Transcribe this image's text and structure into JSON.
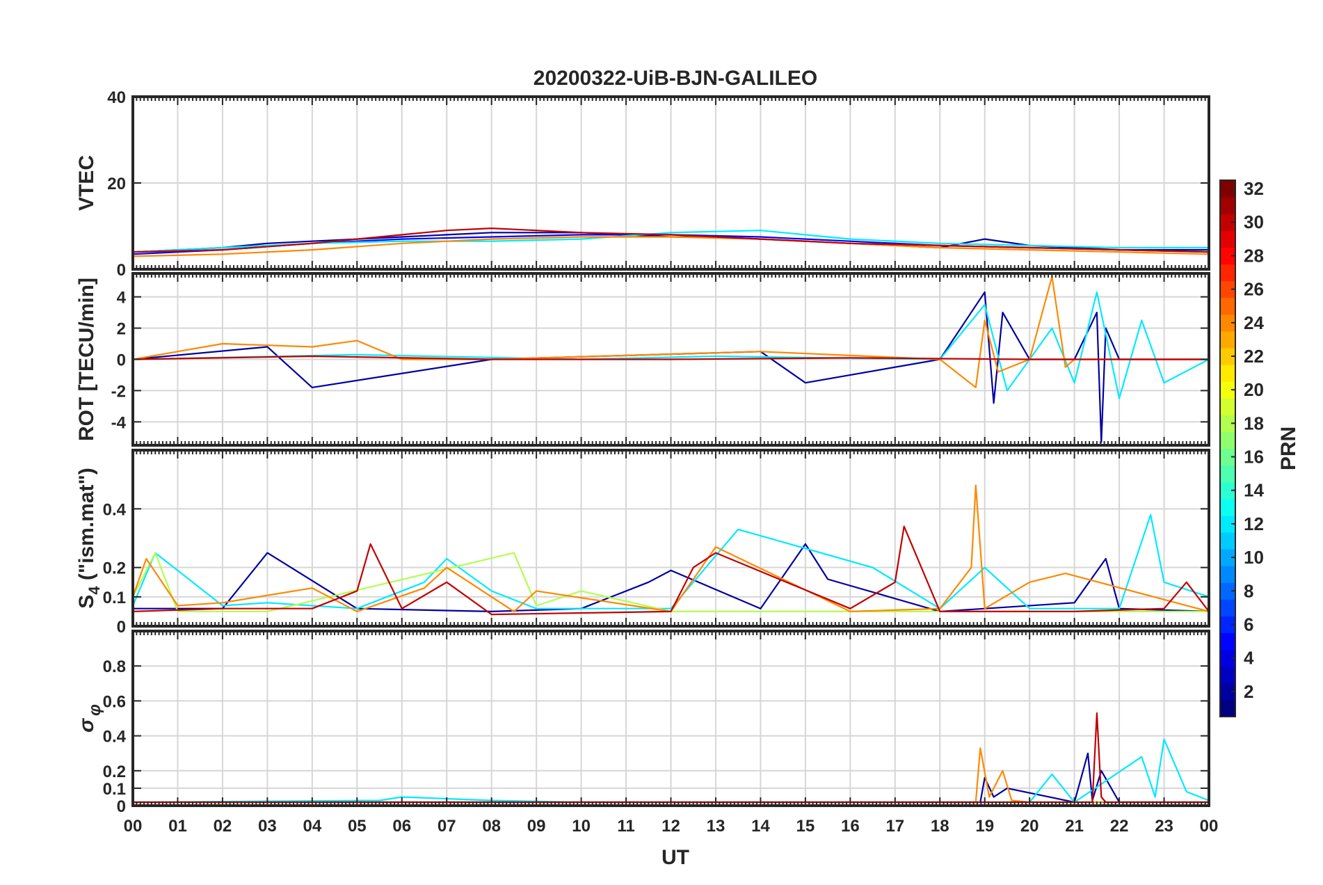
{
  "chart_data": {
    "type": "line",
    "title": "20200322-UiB-BJN-GALILEO",
    "xlabel": "UT",
    "x_ticks": [
      "00",
      "01",
      "02",
      "03",
      "04",
      "05",
      "06",
      "07",
      "08",
      "09",
      "10",
      "11",
      "12",
      "13",
      "14",
      "15",
      "16",
      "17",
      "18",
      "19",
      "20",
      "21",
      "22",
      "23",
      "00"
    ],
    "xlim": [
      0,
      24
    ],
    "grid": true,
    "panels": [
      {
        "id": "vtec",
        "ylabel": "VTEC",
        "ylim": [
          0,
          40
        ],
        "y_ticks": [
          0,
          20,
          40
        ],
        "y_tick_labels": [
          "0",
          "20",
          "40"
        ],
        "series": [
          {
            "prn": 2,
            "x": [
              0,
              1,
              2,
              3,
              4,
              5,
              6,
              7,
              8,
              9,
              10,
              11,
              12,
              13,
              14,
              15,
              16,
              17,
              18,
              19,
              20,
              21,
              22,
              23,
              24
            ],
            "y": [
              4,
              4.5,
              5,
              6,
              6.5,
              7,
              7.5,
              8,
              8.5,
              8.5,
              8.5,
              8,
              7.5,
              7.5,
              7,
              6.5,
              6,
              5.5,
              5,
              7,
              5.5,
              5,
              4.5,
              4.5,
              4.5
            ]
          },
          {
            "prn": 5,
            "x": [
              0,
              2,
              4,
              6,
              8,
              10,
              12,
              14,
              16,
              18,
              20,
              22,
              24
            ],
            "y": [
              3.5,
              4.5,
              6,
              7,
              7.5,
              8,
              8,
              7.5,
              6.5,
              5.5,
              5,
              4.5,
              4
            ]
          },
          {
            "prn": 12,
            "x": [
              0,
              2,
              4,
              6,
              8,
              10,
              12,
              14,
              16,
              18,
              20,
              22,
              24
            ],
            "y": [
              4,
              5,
              6,
              6.5,
              6.5,
              7,
              8.5,
              9,
              7,
              6,
              5.5,
              5,
              5
            ]
          },
          {
            "prn": 24,
            "x": [
              0,
              2,
              4,
              6,
              8,
              10,
              12,
              14,
              16,
              18,
              20,
              22,
              24
            ],
            "y": [
              3,
              3.5,
              4.5,
              6,
              7,
              7.5,
              7.5,
              7,
              6,
              5,
              4.5,
              4,
              3.5
            ]
          },
          {
            "prn": 30,
            "x": [
              0,
              2,
              4,
              6,
              7,
              8,
              10,
              12,
              14,
              16,
              18,
              20,
              22,
              24
            ],
            "y": [
              4,
              4.5,
              6,
              8,
              9,
              9.5,
              8.5,
              8,
              7,
              6,
              5.5,
              5,
              4.5,
              4
            ]
          }
        ]
      },
      {
        "id": "rot",
        "ylabel": "ROT [TECU/min]",
        "ylim": [
          -5.5,
          5.5
        ],
        "y_ticks": [
          -4,
          -2,
          0,
          2,
          4
        ],
        "y_tick_labels": [
          "-4",
          "-2",
          "0",
          "2",
          "4"
        ],
        "series": [
          {
            "prn": 2,
            "x": [
              0,
              3,
              4,
              8,
              14,
              15,
              18,
              19,
              19.2,
              19.4,
              20,
              21,
              21.5,
              21.6,
              21.7,
              22,
              23,
              24
            ],
            "y": [
              0,
              0.8,
              -1.8,
              0,
              0.5,
              -1.5,
              0,
              4.3,
              -2.8,
              3,
              0,
              0,
              3,
              -5.3,
              2,
              0,
              0,
              0
            ]
          },
          {
            "prn": 12,
            "x": [
              0,
              5,
              10,
              13,
              18,
              19,
              19.5,
              20,
              20.5,
              21,
              21.5,
              22,
              22.5,
              23,
              24
            ],
            "y": [
              0,
              0.3,
              0,
              0.2,
              0,
              3.5,
              -2,
              0,
              2,
              -1.5,
              4.3,
              -2.5,
              2.5,
              -1.5,
              0
            ]
          },
          {
            "prn": 24,
            "x": [
              0,
              2,
              4,
              5,
              6,
              8,
              14,
              18,
              18.8,
              19,
              19.3,
              20,
              20.5,
              20.8,
              21,
              24
            ],
            "y": [
              0,
              1,
              0.8,
              1.2,
              0,
              0,
              0.5,
              0,
              -1.8,
              2.5,
              -0.8,
              0,
              5.3,
              -0.5,
              0,
              0
            ]
          },
          {
            "prn": 30,
            "x": [
              0,
              4,
              8,
              12,
              16,
              20,
              24
            ],
            "y": [
              0,
              0.2,
              0,
              0,
              0.1,
              0,
              0
            ]
          }
        ]
      },
      {
        "id": "s4",
        "ylabel_main": "S",
        "ylabel_sub": "4",
        "ylabel_suffix": " (\"ism.mat\")",
        "ylim": [
          0,
          0.6
        ],
        "y_ticks": [
          0,
          0.1,
          0.2,
          0.4
        ],
        "y_tick_labels": [
          "0",
          "0.1",
          "0.2",
          "0.4"
        ],
        "series": [
          {
            "prn": 2,
            "x": [
              0,
              2,
              3,
              5,
              8,
              10,
              11.5,
              12,
              14,
              15,
              15.5,
              18,
              21,
              21.7,
              22,
              24
            ],
            "y": [
              0.06,
              0.06,
              0.25,
              0.06,
              0.05,
              0.06,
              0.15,
              0.19,
              0.06,
              0.28,
              0.16,
              0.05,
              0.08,
              0.23,
              0.06,
              0.05
            ]
          },
          {
            "prn": 12,
            "x": [
              0,
              0.5,
              2,
              3,
              5,
              6.5,
              7,
              8,
              9,
              12,
              13.5,
              16.5,
              18,
              19,
              20,
              22,
              22.7,
              23,
              24
            ],
            "y": [
              0.07,
              0.25,
              0.07,
              0.08,
              0.06,
              0.15,
              0.23,
              0.12,
              0.06,
              0.06,
              0.33,
              0.2,
              0.06,
              0.2,
              0.06,
              0.06,
              0.38,
              0.15,
              0.1
            ]
          },
          {
            "prn": 18,
            "x": [
              0,
              0.5,
              1,
              3,
              8.5,
              9,
              10,
              12,
              24
            ],
            "y": [
              0.1,
              0.25,
              0.05,
              0.05,
              0.25,
              0.07,
              0.12,
              0.05,
              0.05
            ]
          },
          {
            "prn": 24,
            "x": [
              0,
              0.3,
              1,
              2,
              4,
              5,
              6.5,
              7,
              8.5,
              9,
              12,
              13,
              16,
              18,
              18.7,
              18.8,
              19,
              20,
              20.8,
              24
            ],
            "y": [
              0.1,
              0.23,
              0.07,
              0.08,
              0.13,
              0.05,
              0.13,
              0.2,
              0.05,
              0.12,
              0.05,
              0.27,
              0.05,
              0.06,
              0.2,
              0.48,
              0.06,
              0.15,
              0.18,
              0.05
            ]
          },
          {
            "prn": 30,
            "x": [
              0,
              2,
              4,
              5,
              5.3,
              6,
              7,
              8,
              12,
              12.5,
              13,
              16,
              17,
              17.2,
              18,
              21,
              23,
              23.5,
              24
            ],
            "y": [
              0.05,
              0.06,
              0.06,
              0.12,
              0.28,
              0.06,
              0.15,
              0.04,
              0.05,
              0.2,
              0.25,
              0.06,
              0.15,
              0.34,
              0.05,
              0.05,
              0.06,
              0.15,
              0.05
            ]
          }
        ]
      },
      {
        "id": "sigma_phi",
        "ylabel_symbol": "σ",
        "ylabel_sub": "φ",
        "ylim": [
          0,
          1
        ],
        "y_ticks": [
          0,
          0.1,
          0.2,
          0.4,
          0.6,
          0.8
        ],
        "y_tick_labels": [
          "0",
          "0.1",
          "0.2",
          "0.4",
          "0.6",
          "0.8"
        ],
        "series": [
          {
            "prn": 2,
            "x": [
              0,
              18.9,
              19,
              19.2,
              19.5,
              21,
              21.3,
              21.4,
              21.6,
              22,
              24
            ],
            "y": [
              0.02,
              0.02,
              0.16,
              0.05,
              0.1,
              0.02,
              0.3,
              0.03,
              0.2,
              0.02,
              0.02
            ]
          },
          {
            "prn": 12,
            "x": [
              0,
              5.5,
              6,
              8,
              10,
              18,
              20,
              20.5,
              21,
              22.5,
              22.8,
              23,
              23.5,
              24
            ],
            "y": [
              0.02,
              0.03,
              0.05,
              0.03,
              0.02,
              0.02,
              0.02,
              0.18,
              0.02,
              0.28,
              0.05,
              0.38,
              0.08,
              0.03
            ]
          },
          {
            "prn": 24,
            "x": [
              0,
              18.8,
              18.9,
              19.1,
              19.4,
              19.6,
              20,
              24
            ],
            "y": [
              0.02,
              0.02,
              0.33,
              0.05,
              0.2,
              0.03,
              0.02,
              0.02
            ]
          },
          {
            "prn": 30,
            "x": [
              0,
              21.4,
              21.5,
              21.6,
              21.7,
              24
            ],
            "y": [
              0.02,
              0.02,
              0.53,
              0.05,
              0.02,
              0.02
            ]
          }
        ]
      }
    ],
    "colorbar": {
      "label": "PRN",
      "range": [
        1,
        32
      ],
      "ticks": [
        2,
        4,
        6,
        8,
        10,
        12,
        14,
        16,
        18,
        20,
        22,
        24,
        26,
        28,
        30,
        32
      ],
      "colormap": "jet",
      "placement": "right"
    }
  }
}
